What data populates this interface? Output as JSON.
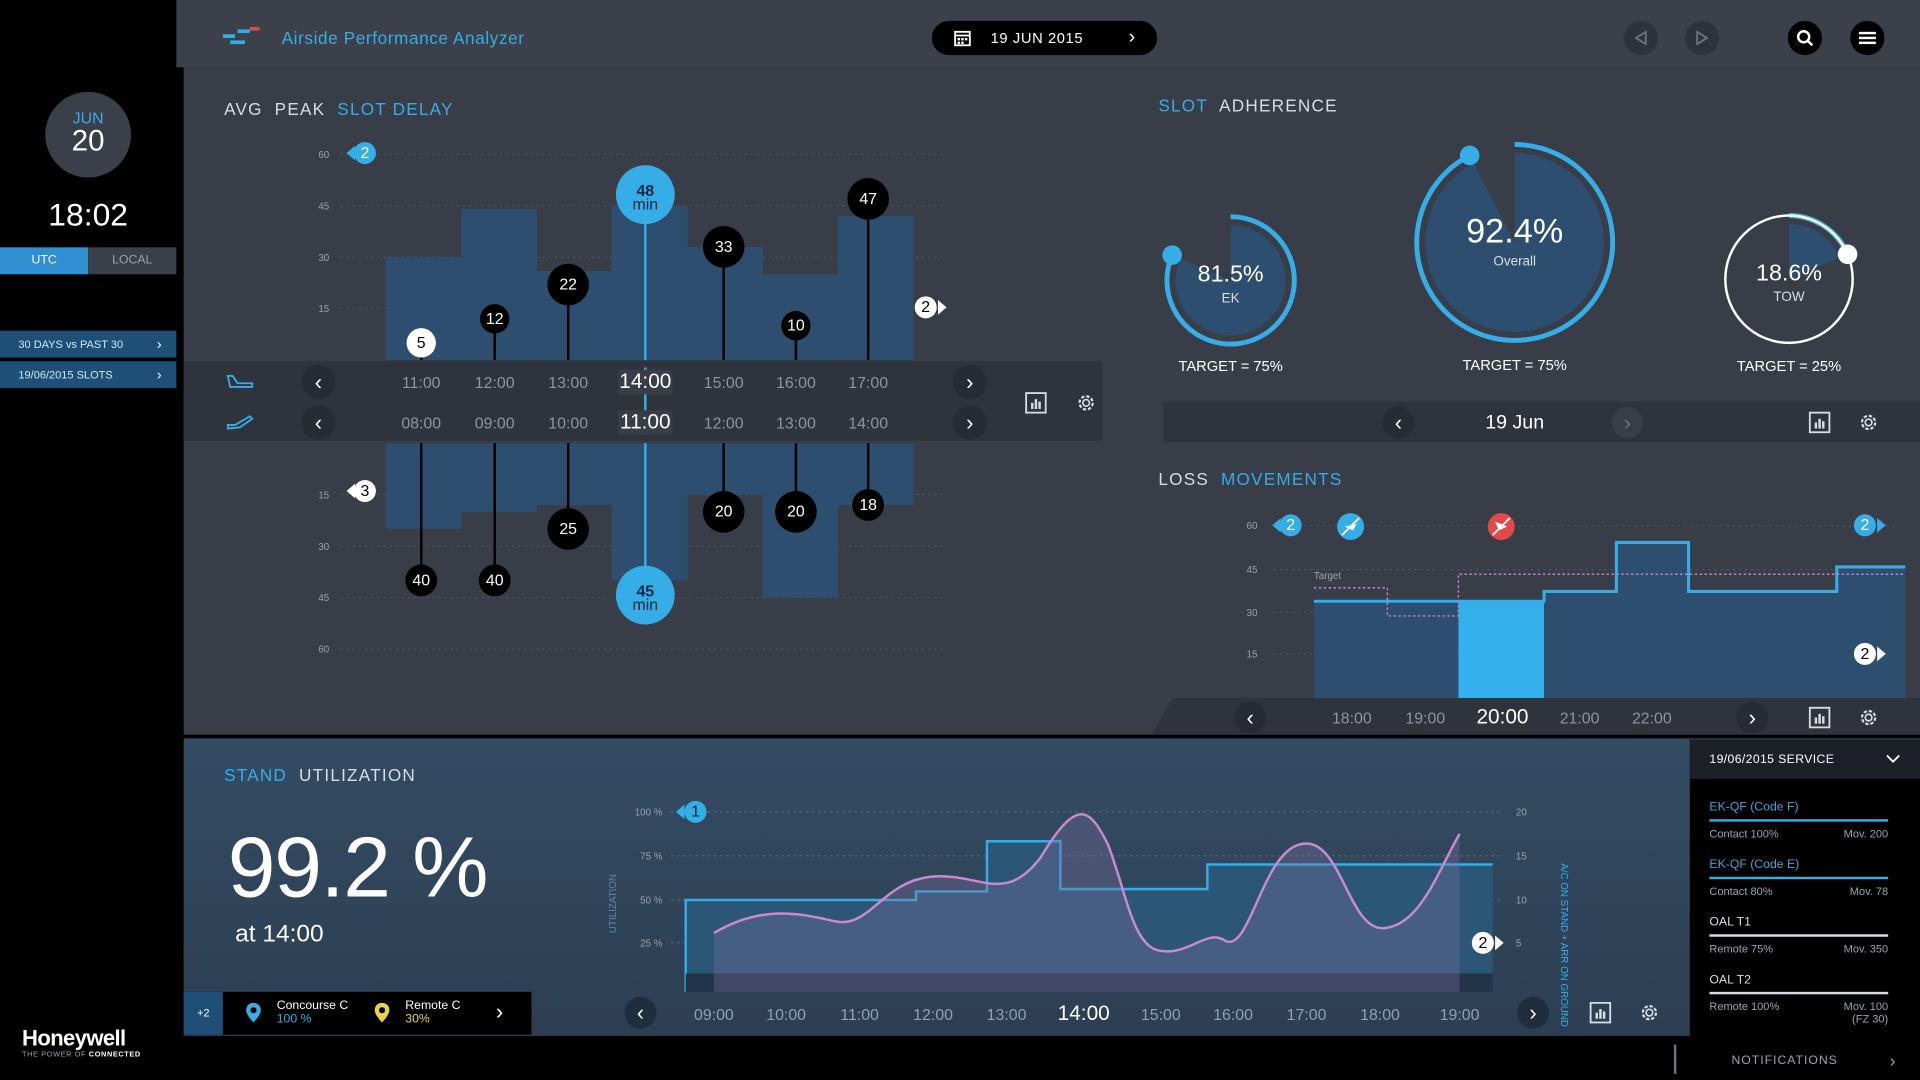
{
  "app": {
    "title": "Airside Performance Analyzer",
    "date": "19 JUN 2015"
  },
  "sidebar": {
    "month": "JUN",
    "day": "20",
    "time": "18:02",
    "tz_utc": "UTC",
    "tz_local": "LOCAL",
    "links": [
      "30 DAYS vs PAST 30",
      "19/06/2015 SLOTS"
    ],
    "brand": "Honeywell",
    "tagline_a": "THE POWER OF",
    "tagline_b": "CONNECTED"
  },
  "slot_delay": {
    "title_a": "AVG",
    "title_b": "PEAK",
    "title_c": "SLOT DELAY",
    "y_ticks_top": [
      "60",
      "45",
      "30",
      "15"
    ],
    "y_ticks_bottom": [
      "15",
      "30",
      "45",
      "60"
    ],
    "top_markers": {
      "flag_left": "2",
      "flag_right": "2"
    },
    "bottom_markers": {
      "flag_left": "3"
    },
    "arrival_times": [
      "11:00",
      "12:00",
      "13:00",
      "14:00",
      "15:00",
      "16:00",
      "17:00"
    ],
    "departure_times": [
      "08:00",
      "09:00",
      "10:00",
      "11:00",
      "12:00",
      "13:00",
      "14:00"
    ],
    "arrival_values": [
      5,
      12,
      22,
      48,
      33,
      10,
      47
    ],
    "departure_values": [
      40,
      40,
      25,
      45,
      20,
      20,
      18
    ],
    "arrival_bars": [
      30,
      44,
      26,
      45,
      33,
      25,
      42
    ],
    "departure_bars": [
      25,
      20,
      18,
      40,
      15,
      45,
      18
    ],
    "highlight_unit": "min",
    "highlight_index": 3
  },
  "slot_adherence": {
    "title_a": "SLOT",
    "title_b": "ADHERENCE",
    "gauges": [
      {
        "value": "81.5%",
        "label": "EK",
        "target": "TARGET = 75%",
        "pct": 81.5
      },
      {
        "value": "92.4%",
        "label": "Overall",
        "target": "TARGET = 75%",
        "pct": 92.4
      },
      {
        "value": "18.6%",
        "label": "TOW",
        "target": "TARGET = 25%",
        "pct": 18.6
      }
    ],
    "date": "19 Jun"
  },
  "loss_movements": {
    "title_a": "LOSS",
    "title_b": "MOVEMENTS",
    "y_ticks": [
      "60",
      "45",
      "30",
      "15"
    ],
    "target_label": "Target",
    "times": [
      "18:00",
      "19:00",
      "20:00",
      "21:00",
      "22:00"
    ],
    "current_index": 2,
    "flags": {
      "left": "2",
      "right_top": "2",
      "right_bottom": "2"
    }
  },
  "stand_utilization": {
    "title_a": "STAND",
    "title_b": "UTILIZATION",
    "big_value": "99.2 %",
    "at_label": "at 14:00",
    "left_axis": [
      "100 %",
      "75 %",
      "50 %",
      "25 %"
    ],
    "right_axis": [
      "20",
      "15",
      "10",
      "5"
    ],
    "left_axis_title": "UTILIZATION",
    "right_axis_title": "A/C ON STAND + ARR ON GROUND",
    "flag_top": "1",
    "flag_right": "2",
    "times": [
      "09:00",
      "10:00",
      "11:00",
      "12:00",
      "13:00",
      "14:00",
      "15:00",
      "16:00",
      "17:00",
      "18:00",
      "19:00"
    ],
    "current_index": 5,
    "concourse": {
      "more": "+2",
      "a_name": "Concourse C",
      "a_value": "100 %",
      "b_name": "Remote C",
      "b_value": "30%"
    }
  },
  "service": {
    "title": "19/06/2015 SERVICE",
    "items": [
      {
        "name": "EK-QF (Code F)",
        "left": "Contact 100%",
        "right": "Mov. 200"
      },
      {
        "name": "EK-QF (Code E)",
        "left": "Contact 80%",
        "right": "Mov. 78"
      },
      {
        "name": "OAL T1",
        "left": "Remote 75%",
        "right": "Mov. 350"
      },
      {
        "name": "OAL T2",
        "left": "Remote 100%",
        "right": "Mov. 100",
        "right2": "(FZ 30)"
      }
    ]
  },
  "footer": {
    "notifications": "NOTIFICATIONS"
  },
  "colors": {
    "accent": "#35aee8",
    "panel": "#383d48",
    "bar": "#2d4e6e",
    "red": "#e04a4a",
    "violet": "#c084c4"
  }
}
